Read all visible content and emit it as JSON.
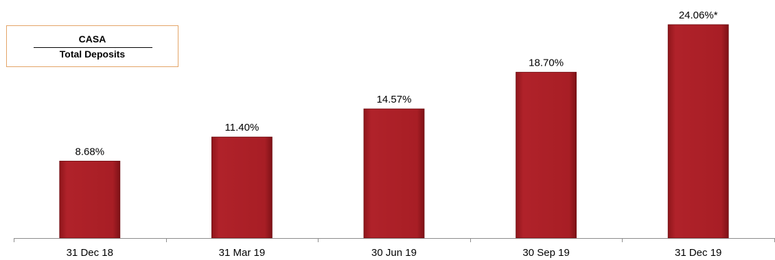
{
  "legend": {
    "numerator": "CASA",
    "denominator": "Total Deposits"
  },
  "chart_data": {
    "type": "bar",
    "categories": [
      "31 Dec 18",
      "31 Mar 19",
      "30 Jun 19",
      "30 Sep 19",
      "31 Dec 19"
    ],
    "values": [
      8.68,
      11.4,
      14.57,
      18.7,
      24.06
    ],
    "data_labels": [
      "8.68%",
      "11.40%",
      "14.57%",
      "18.70%",
      "24.06%*"
    ],
    "title": "",
    "xlabel": "",
    "ylabel": "",
    "ylim": [
      0,
      24.06
    ],
    "bar_color": "#ab1f24",
    "grid": false
  }
}
